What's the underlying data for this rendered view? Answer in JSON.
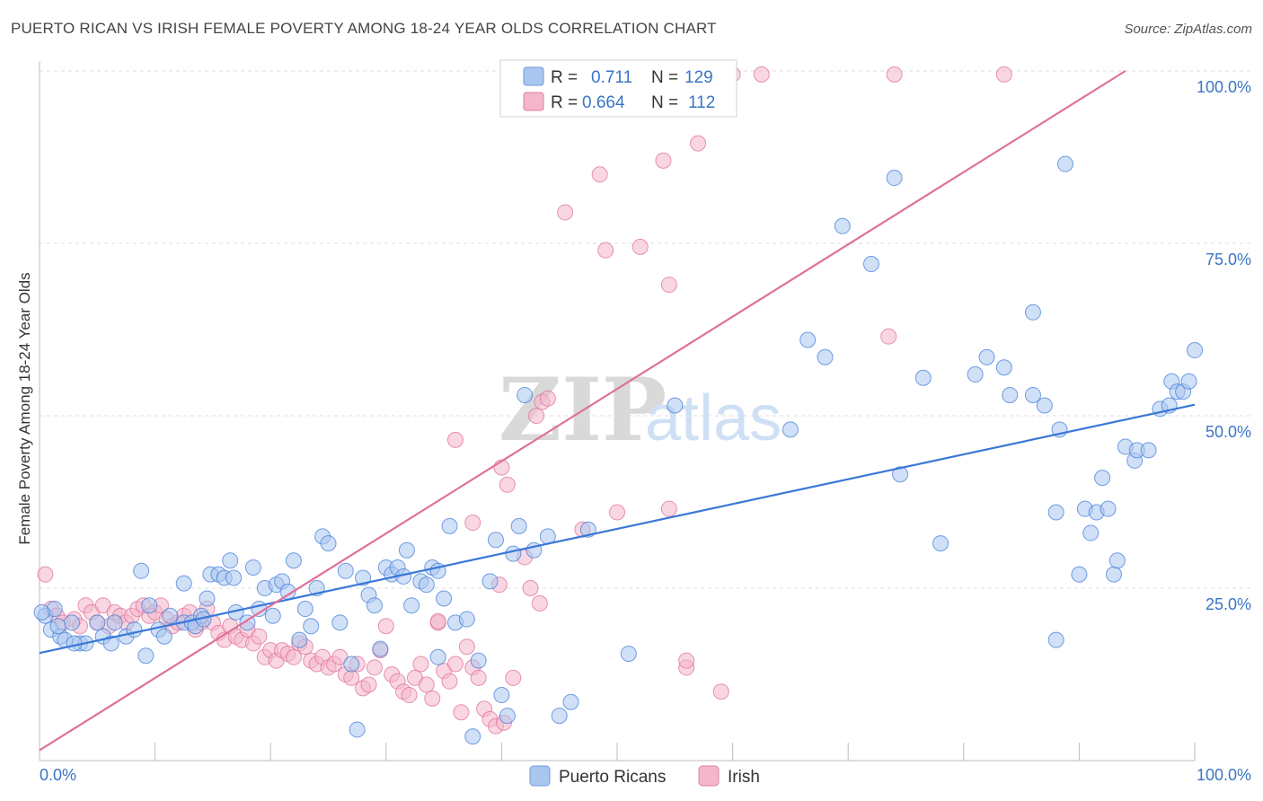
{
  "header": {
    "title": "PUERTO RICAN VS IRISH FEMALE POVERTY AMONG 18-24 YEAR OLDS CORRELATION CHART",
    "source": "Source: ZipAtlas.com"
  },
  "watermark": {
    "part1": "ZIP",
    "part2": "atlas"
  },
  "legend_top": {
    "rows": [
      {
        "r_label": "R =",
        "r_value": "0.711",
        "n_label": "N =",
        "n_value": "129",
        "color": "#a9c6ef"
      },
      {
        "r_label": "R =",
        "r_value": "0.664",
        "n_label": "N =",
        "n_value": "112",
        "color": "#f4b6ca"
      }
    ]
  },
  "legend_bottom": [
    {
      "label": "Puerto Ricans",
      "color": "#a9c6ef"
    },
    {
      "label": "Irish",
      "color": "#f4b6ca"
    }
  ],
  "chart_data": {
    "type": "scatter",
    "title": "PUERTO RICAN VS IRISH FEMALE POVERTY AMONG 18-24 YEAR OLDS CORRELATION CHART",
    "xlabel": "",
    "ylabel": "Female Poverty Among 18-24 Year Olds",
    "xlim": [
      0,
      100
    ],
    "ylim": [
      0,
      100
    ],
    "x_tick_labels": [
      "0.0%",
      "100.0%"
    ],
    "y_tick_labels": [
      "25.0%",
      "50.0%",
      "75.0%",
      "100.0%"
    ],
    "y_ticks": [
      25,
      50,
      75,
      100
    ],
    "grid": true,
    "legend_position": "top-center",
    "colors": {
      "blue": "#3a78d8",
      "blue_fill": "#a9c6ef",
      "pink": "#e0709a",
      "pink_fill": "#f4b6ca"
    },
    "series": [
      {
        "name": "Puerto Ricans",
        "r": 0.711,
        "n": 129,
        "trend": [
          [
            0,
            15.6
          ],
          [
            100,
            51.6
          ]
        ],
        "points": [
          [
            0.5,
            21
          ],
          [
            1,
            19
          ],
          [
            1.3,
            22
          ],
          [
            1.8,
            18
          ],
          [
            2.2,
            17.5
          ],
          [
            2.8,
            20
          ],
          [
            3.5,
            17
          ],
          [
            4,
            17
          ],
          [
            5,
            20
          ],
          [
            5.5,
            18
          ],
          [
            6.2,
            17
          ],
          [
            6.5,
            20
          ],
          [
            7.5,
            18
          ],
          [
            8.2,
            19
          ],
          [
            8.8,
            27.5
          ],
          [
            9.2,
            15.2
          ],
          [
            9.5,
            22.5
          ],
          [
            10.3,
            19
          ],
          [
            10.8,
            18
          ],
          [
            11.3,
            21
          ],
          [
            12.5,
            20
          ],
          [
            12.5,
            25.7
          ],
          [
            13.2,
            20
          ],
          [
            13.5,
            19.5
          ],
          [
            14,
            21
          ],
          [
            14.5,
            23.5
          ],
          [
            14.8,
            27
          ],
          [
            15.5,
            27
          ],
          [
            16,
            26.5
          ],
          [
            16.5,
            29
          ],
          [
            16.8,
            26.5
          ],
          [
            17,
            21.5
          ],
          [
            18,
            20
          ],
          [
            18.5,
            28
          ],
          [
            19,
            22
          ],
          [
            19.5,
            25
          ],
          [
            20.2,
            21
          ],
          [
            20.5,
            25.5
          ],
          [
            21,
            26
          ],
          [
            21.5,
            24.5
          ],
          [
            22,
            29
          ],
          [
            22.5,
            17.5
          ],
          [
            23,
            22
          ],
          [
            23.5,
            19.5
          ],
          [
            24,
            25
          ],
          [
            24.5,
            32.5
          ],
          [
            25,
            31.5
          ],
          [
            26,
            20
          ],
          [
            26.5,
            27.5
          ],
          [
            27,
            14
          ],
          [
            27.5,
            4.5
          ],
          [
            28,
            26.5
          ],
          [
            28.5,
            24
          ],
          [
            29,
            22.5
          ],
          [
            29.5,
            16.2
          ],
          [
            30,
            28
          ],
          [
            30.5,
            27
          ],
          [
            31,
            28
          ],
          [
            31.5,
            26.7
          ],
          [
            31.8,
            30.5
          ],
          [
            32.2,
            22.5
          ],
          [
            33,
            26
          ],
          [
            33.5,
            25.5
          ],
          [
            34,
            28
          ],
          [
            34.5,
            15
          ],
          [
            35,
            23.5
          ],
          [
            35.5,
            34
          ],
          [
            36,
            20
          ],
          [
            37,
            20.5
          ],
          [
            37.5,
            3.5
          ],
          [
            38,
            14.5
          ],
          [
            39,
            26
          ],
          [
            39.5,
            32
          ],
          [
            40,
            9.5
          ],
          [
            40.5,
            6.5
          ],
          [
            41,
            30
          ],
          [
            41.5,
            34
          ],
          [
            42,
            53
          ],
          [
            44,
            32.5
          ],
          [
            45,
            6.5
          ],
          [
            46,
            8.5
          ],
          [
            47.5,
            33.5
          ],
          [
            51,
            15.5
          ],
          [
            55,
            51.5
          ],
          [
            65,
            48
          ],
          [
            66.5,
            61
          ],
          [
            68,
            58.5
          ],
          [
            69.5,
            77.5
          ],
          [
            72,
            72
          ],
          [
            74,
            84.5
          ],
          [
            74.5,
            41.5
          ],
          [
            76.5,
            55.5
          ],
          [
            78,
            31.5
          ],
          [
            81,
            56
          ],
          [
            82,
            58.5
          ],
          [
            83.5,
            57
          ],
          [
            84,
            53
          ],
          [
            86,
            65
          ],
          [
            86,
            53
          ],
          [
            87,
            51.5
          ],
          [
            88,
            17.5
          ],
          [
            88,
            36
          ],
          [
            88.3,
            48
          ],
          [
            88.8,
            86.5
          ],
          [
            90,
            27
          ],
          [
            90.5,
            36.5
          ],
          [
            91,
            33
          ],
          [
            91.5,
            36
          ],
          [
            92,
            41
          ],
          [
            92.5,
            36.5
          ],
          [
            93,
            27
          ],
          [
            93.3,
            29
          ],
          [
            94,
            45.5
          ],
          [
            94.8,
            43.5
          ],
          [
            95,
            45
          ],
          [
            96,
            45
          ],
          [
            97,
            51
          ],
          [
            97.8,
            51.5
          ],
          [
            98,
            55
          ],
          [
            98.5,
            53.5
          ],
          [
            99,
            53.5
          ],
          [
            99.5,
            55
          ],
          [
            100,
            59.5
          ],
          [
            0.2,
            21.5
          ],
          [
            1.6,
            19.5
          ],
          [
            3,
            17
          ],
          [
            14.2,
            20.5
          ],
          [
            34.5,
            27.5
          ],
          [
            42.8,
            30.5
          ]
        ]
      },
      {
        "name": "Irish",
        "r": 0.664,
        "n": 112,
        "trend": [
          [
            0,
            1.5
          ],
          [
            94,
            100
          ]
        ],
        "points": [
          [
            0.5,
            27
          ],
          [
            1,
            22
          ],
          [
            1.5,
            21
          ],
          [
            2,
            20
          ],
          [
            3,
            20.5
          ],
          [
            3.5,
            19.5
          ],
          [
            4,
            22.5
          ],
          [
            4.5,
            21.5
          ],
          [
            5,
            20
          ],
          [
            5.5,
            22.5
          ],
          [
            6,
            19.5
          ],
          [
            6.5,
            21.5
          ],
          [
            7,
            21
          ],
          [
            7.5,
            20
          ],
          [
            8,
            21
          ],
          [
            8.5,
            22
          ],
          [
            9,
            22.5
          ],
          [
            9.5,
            21
          ],
          [
            10,
            21.5
          ],
          [
            10.5,
            22.5
          ],
          [
            11,
            20.5
          ],
          [
            11.5,
            19.5
          ],
          [
            12,
            20
          ],
          [
            12.5,
            21
          ],
          [
            13,
            21.5
          ],
          [
            13.5,
            19
          ],
          [
            14,
            20
          ],
          [
            14.5,
            22
          ],
          [
            15,
            20
          ],
          [
            15.5,
            18.5
          ],
          [
            16,
            17.5
          ],
          [
            16.5,
            19.5
          ],
          [
            17,
            18
          ],
          [
            17.5,
            17.5
          ],
          [
            18,
            19
          ],
          [
            18.5,
            17
          ],
          [
            19,
            18
          ],
          [
            19.5,
            15
          ],
          [
            20,
            16
          ],
          [
            20.5,
            14.5
          ],
          [
            21,
            16
          ],
          [
            21.5,
            15.5
          ],
          [
            22,
            15
          ],
          [
            22.5,
            17
          ],
          [
            23,
            16.5
          ],
          [
            23.5,
            14.5
          ],
          [
            24,
            14
          ],
          [
            24.5,
            15
          ],
          [
            25,
            13.5
          ],
          [
            25.5,
            14
          ],
          [
            26,
            15
          ],
          [
            26.5,
            12.5
          ],
          [
            27,
            12
          ],
          [
            27.5,
            14
          ],
          [
            28,
            10.5
          ],
          [
            28.5,
            11
          ],
          [
            29,
            13.5
          ],
          [
            29.5,
            16
          ],
          [
            30,
            19.5
          ],
          [
            30.5,
            12.5
          ],
          [
            31,
            11.5
          ],
          [
            31.5,
            10
          ],
          [
            32,
            9.5
          ],
          [
            32.5,
            12
          ],
          [
            33,
            14
          ],
          [
            33.5,
            11
          ],
          [
            34,
            9
          ],
          [
            34.5,
            20
          ],
          [
            35,
            13
          ],
          [
            35.5,
            11.5
          ],
          [
            36,
            14
          ],
          [
            36.5,
            7
          ],
          [
            37,
            16.5
          ],
          [
            37.5,
            13.5
          ],
          [
            38,
            12
          ],
          [
            38.5,
            7.5
          ],
          [
            39,
            6
          ],
          [
            39.5,
            5
          ],
          [
            40,
            42.5
          ],
          [
            40.5,
            40
          ],
          [
            41,
            12
          ],
          [
            42,
            29.5
          ],
          [
            42.5,
            25
          ],
          [
            43,
            50
          ],
          [
            43.5,
            52
          ],
          [
            44,
            52.5
          ],
          [
            45.5,
            79.5
          ],
          [
            48.5,
            85
          ],
          [
            49,
            74
          ],
          [
            52,
            74.5
          ],
          [
            54,
            87
          ],
          [
            54.5,
            69
          ],
          [
            57,
            89.5
          ],
          [
            58,
            99.5
          ],
          [
            60,
            99.5
          ],
          [
            62.5,
            99.5
          ],
          [
            73.5,
            61.5
          ],
          [
            74,
            99.5
          ],
          [
            83.5,
            99.5
          ],
          [
            36,
            46.5
          ],
          [
            34.5,
            20.2
          ],
          [
            37.5,
            34.5
          ],
          [
            39.8,
            25.5
          ],
          [
            40.2,
            5.5
          ],
          [
            43.3,
            22.8
          ],
          [
            47,
            33.5
          ],
          [
            50,
            36
          ],
          [
            54.5,
            36.5
          ],
          [
            56,
            13.5
          ],
          [
            56,
            14.5
          ],
          [
            59,
            10
          ]
        ]
      }
    ]
  }
}
